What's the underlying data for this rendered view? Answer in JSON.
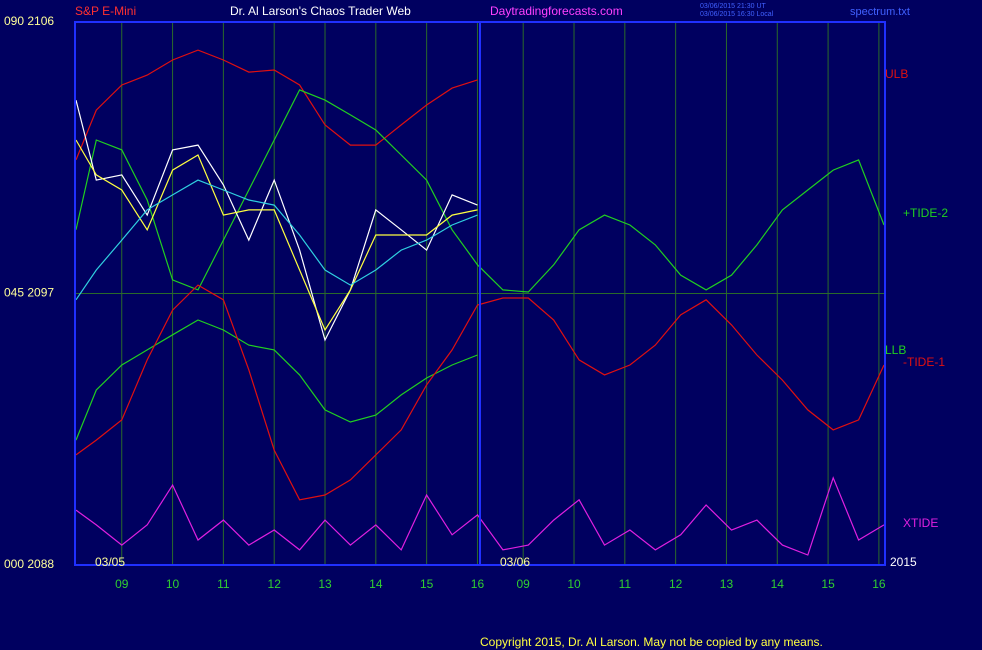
{
  "chart_data": {
    "type": "line",
    "title": "Dr. Al Larson's Chaos Trader Web",
    "instrument": "S&P E-Mini",
    "site": "Daytradingforecasts.com",
    "timestamps": [
      "03/06/2015 21:30 UT",
      "03/06/2015 16:30 Local"
    ],
    "file": "spectrum.txt",
    "copyright": "Copyright 2015, Dr. Al Larson. May not be copied by any means.",
    "annotations": [
      "03/05",
      "03/06",
      "2015"
    ],
    "xlim": [
      8.08,
      24.02
    ],
    "ylim": [
      2088,
      2106
    ],
    "yticks": [
      {
        "value": 2088,
        "label": "000  2088"
      },
      {
        "value": 2097,
        "label": "045  2097"
      },
      {
        "value": 2106,
        "label": "090  2106"
      }
    ],
    "xticks": [
      {
        "value": 9,
        "label": "09"
      },
      10,
      11,
      12,
      13,
      14,
      15,
      16,
      {
        "value": 16.9,
        "label": "09"
      },
      {
        "value": 17.9,
        "label": "10"
      },
      {
        "value": 18.9,
        "label": "11"
      },
      {
        "value": 19.9,
        "label": "12"
      },
      {
        "value": 20.9,
        "label": "13"
      },
      {
        "value": 21.9,
        "label": "14"
      },
      {
        "value": 22.9,
        "label": "15"
      },
      {
        "value": 23.9,
        "label": "16"
      }
    ],
    "grid": true,
    "x": [
      8.1,
      8.5,
      9,
      9.5,
      10,
      10.5,
      11,
      11.5,
      12,
      12.5,
      13,
      13.5,
      14,
      14.5,
      15,
      15.5,
      16,
      16.5,
      17,
      17.5,
      18,
      18.5,
      19,
      19.5,
      20,
      20.5,
      21,
      21.5,
      22,
      22.5,
      23,
      23.5,
      24
    ],
    "series": [
      {
        "name": "ULB",
        "color": "#e01010",
        "values": [
          2101.43,
          2103.08,
          2103.91,
          2104.24,
          2104.74,
          2105.07,
          2104.74,
          2104.34,
          2104.41,
          2103.91,
          2102.59,
          2101.92,
          2101.92,
          2102.59,
          2103.25,
          2103.81,
          2104.08,
          null,
          null,
          null,
          null,
          null,
          null,
          null,
          null,
          null,
          null,
          null,
          null,
          null,
          null,
          null,
          null
        ]
      },
      {
        "name": "+TIDE-2",
        "color": "#20d020",
        "values": [
          2099.11,
          2102.09,
          2101.76,
          2100.1,
          2097.45,
          2097.12,
          2098.77,
          2100.43,
          2102.09,
          2103.75,
          2103.41,
          2102.92,
          2102.42,
          2101.59,
          2100.76,
          2099.11,
          2097.95,
          2097.12,
          2097.05,
          2097.95,
          2099.11,
          2099.6,
          2099.27,
          2098.61,
          2097.61,
          2097.12,
          2097.61,
          2098.61,
          2099.77,
          2100.43,
          2101.09,
          2101.43,
          2099.27
        ]
      },
      {
        "name": "LLB",
        "color": "#20d020",
        "values": [
          2092.14,
          2093.8,
          2094.63,
          2095.13,
          2095.63,
          2096.12,
          2095.79,
          2095.29,
          2095.13,
          2094.3,
          2093.14,
          2092.74,
          2092.97,
          2093.64,
          2094.2,
          2094.63,
          2094.96,
          null,
          null,
          null,
          null,
          null,
          null,
          null,
          null,
          null,
          null,
          null,
          null,
          null,
          null,
          null,
          null
        ]
      },
      {
        "name": "-TIDE-1",
        "color": "#e01010",
        "values": [
          2091.65,
          2092.14,
          2092.81,
          2094.8,
          2096.45,
          2097.28,
          2096.79,
          2094.47,
          2091.81,
          2090.16,
          2090.32,
          2090.82,
          2091.65,
          2092.48,
          2093.97,
          2095.13,
          2096.62,
          2096.85,
          2096.85,
          2096.12,
          2094.8,
          2094.3,
          2094.63,
          2095.29,
          2096.29,
          2096.79,
          2095.96,
          2094.96,
          2094.13,
          2093.14,
          2092.48,
          2092.81,
          2094.63
        ]
      },
      {
        "name": "XTIDE",
        "color": "#e020e0",
        "values": [
          2089.82,
          2089.33,
          2088.66,
          2089.33,
          2090.65,
          2088.83,
          2089.49,
          2088.66,
          2089.16,
          2088.5,
          2089.49,
          2088.66,
          2089.33,
          2088.5,
          2090.32,
          2089.0,
          2089.66,
          2088.5,
          2088.66,
          2089.49,
          2090.16,
          2088.66,
          2089.16,
          2088.5,
          2089.0,
          2089.99,
          2089.16,
          2089.49,
          2088.66,
          2088.33,
          2090.89,
          2088.83,
          2089.33
        ]
      },
      {
        "color": "#ffffff",
        "values": [
          2103.41,
          2100.76,
          2100.93,
          2099.6,
          2101.76,
          2101.92,
          2100.6,
          2098.77,
          2100.76,
          2098.44,
          2095.46,
          2097.12,
          2099.77,
          2099.11,
          2098.44,
          2100.27,
          2099.93,
          null,
          null,
          null,
          null,
          null,
          null,
          null,
          null,
          null,
          null,
          null,
          null,
          null,
          null,
          null,
          null
        ]
      },
      {
        "color": "#ffff40",
        "values": [
          2102.09,
          2100.93,
          2100.43,
          2099.11,
          2101.09,
          2101.59,
          2099.6,
          2099.77,
          2099.77,
          2097.78,
          2095.79,
          2097.12,
          2098.94,
          2098.94,
          2098.94,
          2099.6,
          2099.77,
          null,
          null,
          null,
          null,
          null,
          null,
          null,
          null,
          null,
          null,
          null,
          null,
          null,
          null,
          null,
          null
        ]
      },
      {
        "color": "#30d0e0",
        "values": [
          2096.79,
          2097.78,
          2098.77,
          2099.77,
          2100.27,
          2100.76,
          2100.43,
          2100.1,
          2099.93,
          2098.94,
          2097.78,
          2097.28,
          2097.78,
          2098.44,
          2098.77,
          2099.27,
          2099.6,
          null,
          null,
          null,
          null,
          null,
          null,
          null,
          null,
          null,
          null,
          null,
          null,
          null,
          null,
          null,
          null
        ]
      }
    ]
  }
}
